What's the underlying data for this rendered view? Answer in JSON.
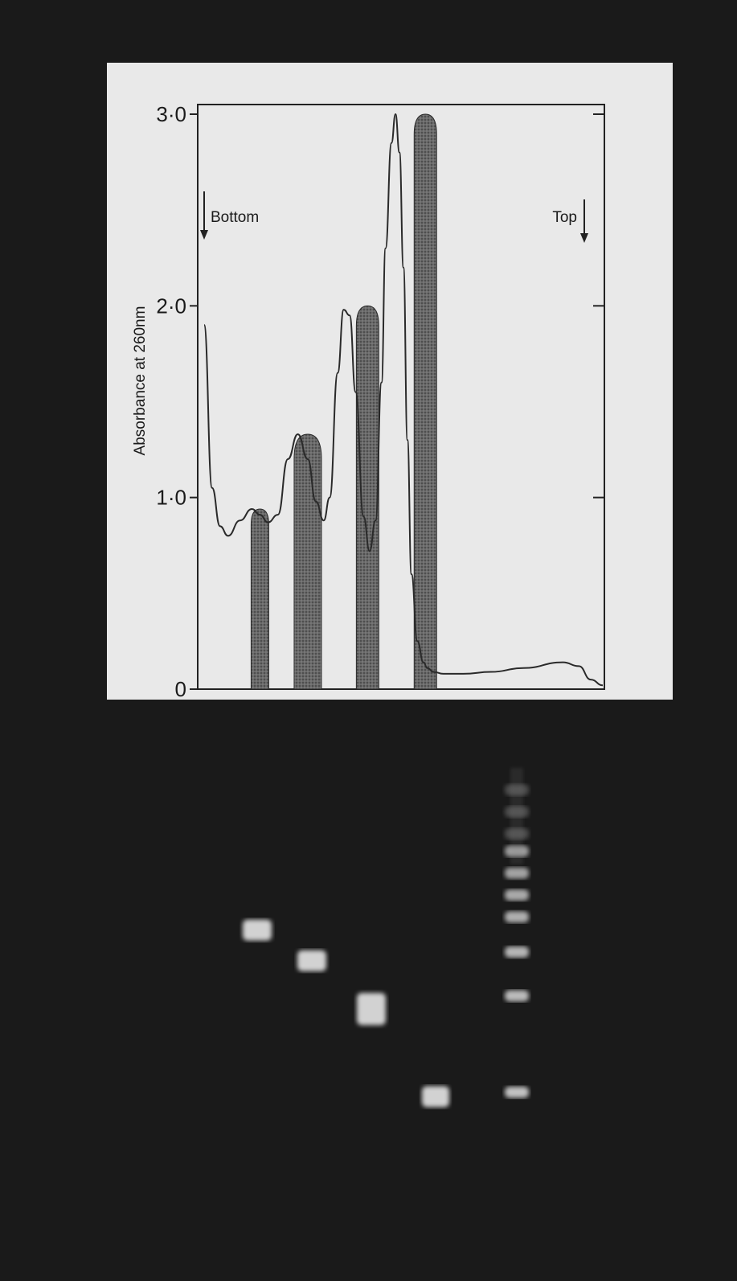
{
  "chart_data": {
    "type": "line",
    "title": "",
    "xlabel": "",
    "ylabel": "Absorbance at 260nm",
    "ylim": [
      0,
      3.0
    ],
    "y_ticks": [
      {
        "value": 0,
        "label": "0"
      },
      {
        "value": 1.0,
        "label": "1·0"
      },
      {
        "value": 2.0,
        "label": "2·0"
      },
      {
        "value": 3.0,
        "label": "3·0"
      }
    ],
    "annotations": {
      "bottom": "Bottom",
      "top": "Top"
    },
    "x_axis": "fraction position, bottom (left) to top (right)",
    "series": [
      {
        "x": [
          0.0,
          0.02,
          0.04,
          0.06,
          0.09,
          0.12,
          0.14,
          0.16,
          0.185,
          0.21,
          0.235,
          0.26,
          0.28,
          0.3,
          0.315,
          0.335,
          0.35,
          0.365,
          0.38,
          0.4,
          0.415,
          0.43,
          0.445,
          0.455,
          0.47,
          0.48,
          0.49,
          0.5,
          0.51,
          0.52,
          0.535,
          0.55,
          0.56,
          0.575,
          0.6,
          0.65,
          0.72,
          0.8,
          0.9,
          0.94,
          0.97,
          1.0
        ],
        "values": [
          1.9,
          1.05,
          0.85,
          0.8,
          0.88,
          0.94,
          0.91,
          0.87,
          0.91,
          1.2,
          1.33,
          1.2,
          0.98,
          0.88,
          1.0,
          1.65,
          1.98,
          1.95,
          1.55,
          0.9,
          0.72,
          0.88,
          1.6,
          2.3,
          2.85,
          3.0,
          2.8,
          2.2,
          1.3,
          0.6,
          0.25,
          0.14,
          0.11,
          0.09,
          0.08,
          0.08,
          0.09,
          0.11,
          0.14,
          0.12,
          0.05,
          0.02
        ]
      }
    ],
    "shaded_peaks": [
      {
        "center": 0.14,
        "peak": 0.94
      },
      {
        "center": 0.26,
        "peak": 1.33
      },
      {
        "center": 0.41,
        "peak": 2.0
      },
      {
        "center": 0.555,
        "peak": 3.0
      }
    ]
  },
  "gel": {
    "lanes": [
      {
        "bands": [
          0.37
        ]
      },
      {
        "bands": [
          0.44
        ]
      },
      {
        "bands": [
          0.55
        ]
      },
      {
        "bands": [
          0.75
        ]
      },
      {
        "ladder": true,
        "bands": [
          0.05,
          0.1,
          0.15,
          0.19,
          0.24,
          0.29,
          0.34,
          0.42,
          0.52,
          0.74
        ]
      }
    ]
  },
  "colors": {
    "background": "#151515",
    "panel": "#e9e9e9",
    "line": "#2a2a2a",
    "shade": "#555555",
    "band": "#e6e6e6"
  }
}
